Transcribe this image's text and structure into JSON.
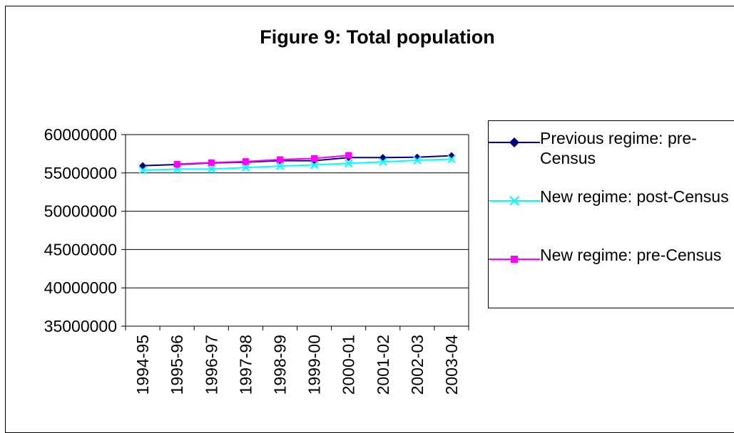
{
  "chart_data": {
    "type": "line",
    "title": "Figure 9: Total population",
    "xlabel": "",
    "ylabel": "",
    "categories": [
      "1994-95",
      "1995-96",
      "1996-97",
      "1997-98",
      "1998-99",
      "1999-00",
      "2000-01",
      "2001-02",
      "2002-03",
      "2003-04"
    ],
    "ylim": [
      35000000,
      60000000
    ],
    "yticks": [
      "35000000",
      "40000000",
      "45000000",
      "50000000",
      "55000000",
      "60000000"
    ],
    "grid": "horizontal",
    "legend_position": "right",
    "series": [
      {
        "name": "Previous regime: pre-Census",
        "color": "#000080",
        "marker": "diamond",
        "values": [
          55950000,
          56100000,
          56300000,
          56400000,
          56600000,
          56600000,
          57000000,
          57000000,
          57050000,
          57250000
        ]
      },
      {
        "name": "New regime: post-Census",
        "color": "#00FFFF",
        "marker": "x",
        "values": [
          55350000,
          55500000,
          55500000,
          55700000,
          55900000,
          56050000,
          56250000,
          56450000,
          56650000,
          56800000
        ]
      },
      {
        "name": "New regime: pre-Census",
        "color": "#FF00FF",
        "marker": "square",
        "values": [
          null,
          56150000,
          56350000,
          56500000,
          56750000,
          56900000,
          57300000,
          null,
          null,
          null
        ]
      }
    ]
  }
}
